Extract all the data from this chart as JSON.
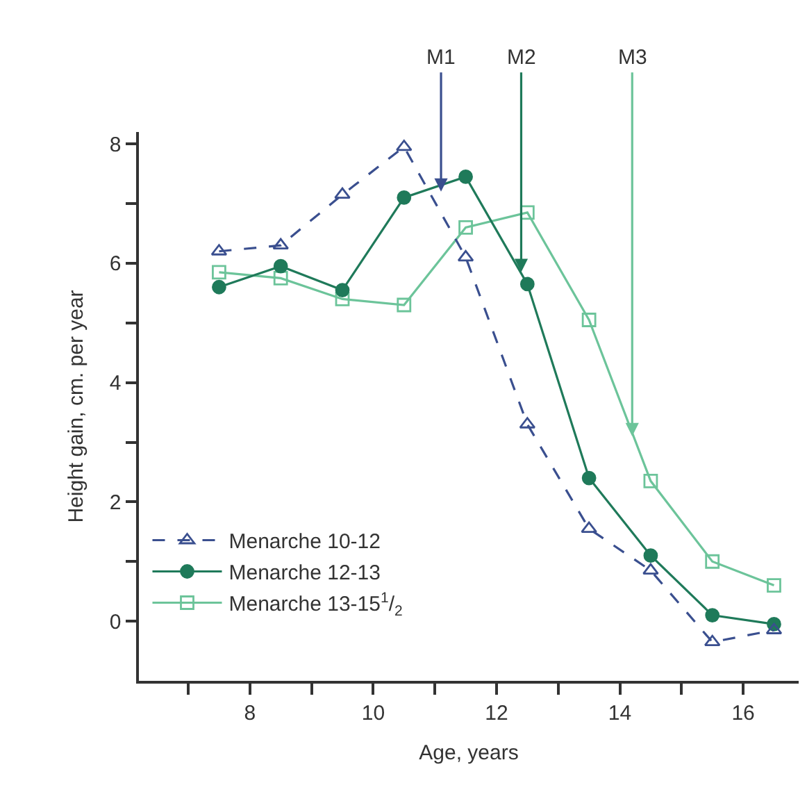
{
  "chart_data": {
    "type": "line",
    "xlabel": "Age, years",
    "ylabel": "Height gain, cm. per year",
    "x": [
      7.5,
      8.5,
      9.5,
      10.5,
      11.5,
      12.5,
      13.5,
      14.5,
      15.5,
      16.5
    ],
    "series": [
      {
        "name": "Menarche 10-12",
        "color": "#3a4f8f",
        "marker": "triangle",
        "line_style": "dashed",
        "values": [
          6.2,
          6.3,
          7.15,
          7.95,
          6.1,
          3.3,
          1.55,
          0.85,
          -0.35,
          -0.15
        ]
      },
      {
        "name": "Menarche 12-13",
        "color": "#1f7a5a",
        "marker": "circle",
        "line_style": "solid",
        "values": [
          5.6,
          5.95,
          5.55,
          7.1,
          7.45,
          5.65,
          2.4,
          1.1,
          0.1,
          -0.05
        ]
      },
      {
        "name": "Menarche 13-15$^{1}$/$_{2}$",
        "color": "#6cc49a",
        "marker": "square",
        "line_style": "solid",
        "values": [
          5.85,
          5.75,
          5.4,
          5.3,
          6.6,
          6.85,
          5.05,
          2.35,
          1.0,
          0.6
        ]
      }
    ],
    "annotations": [
      {
        "text": "M1",
        "x": 11.1,
        "y": 7.2
      },
      {
        "text": "M2",
        "x": 12.4,
        "y": 5.85
      },
      {
        "text": "M3",
        "x": 14.2,
        "y": 3.1
      }
    ],
    "xlim": [
      6.2,
      16.9
    ],
    "ylim": [
      -1,
      8.2
    ],
    "xticks": [
      {
        "value": 7,
        "label": null
      },
      8,
      {
        "value": 9,
        "label": null
      },
      10,
      {
        "value": 11,
        "label": null
      },
      12,
      {
        "value": 13,
        "label": null
      },
      14,
      {
        "value": 15,
        "label": null
      },
      16
    ],
    "yticks": [
      0,
      {
        "value": 1,
        "label": null
      },
      2,
      {
        "value": 3,
        "label": null
      },
      4,
      {
        "value": 5,
        "label": null
      },
      6,
      {
        "value": 7,
        "label": null
      },
      8
    ],
    "legend": "bottom left"
  }
}
